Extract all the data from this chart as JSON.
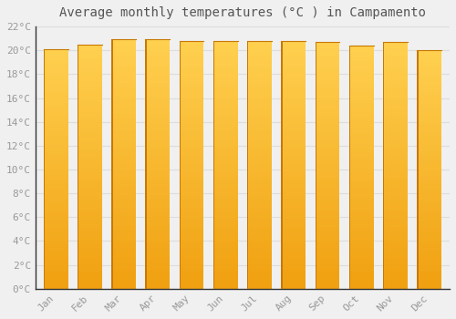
{
  "title": "Average monthly temperatures (°C ) in Campamento",
  "months": [
    "Jan",
    "Feb",
    "Mar",
    "Apr",
    "May",
    "Jun",
    "Jul",
    "Aug",
    "Sep",
    "Oct",
    "Nov",
    "Dec"
  ],
  "temperatures": [
    20.1,
    20.5,
    20.9,
    20.9,
    20.8,
    20.8,
    20.8,
    20.8,
    20.7,
    20.4,
    20.7,
    20.0
  ],
  "bar_color_top": "#FFD050",
  "bar_color_bottom": "#F0A010",
  "bar_edge_left": "#C87800",
  "bar_edge_color": "#C87800",
  "ylim": [
    0,
    22
  ],
  "yticks": [
    0,
    2,
    4,
    6,
    8,
    10,
    12,
    14,
    16,
    18,
    20,
    22
  ],
  "ytick_labels": [
    "0°C",
    "2°C",
    "4°C",
    "6°C",
    "8°C",
    "10°C",
    "12°C",
    "14°C",
    "16°C",
    "18°C",
    "20°C",
    "22°C"
  ],
  "background_color": "#f0f0f0",
  "grid_color": "#dddddd",
  "title_fontsize": 10,
  "tick_fontsize": 8,
  "tick_font_color": "#999999",
  "title_font_color": "#555555",
  "bar_width": 0.72,
  "figsize": [
    5.0,
    3.5
  ],
  "dpi": 100
}
